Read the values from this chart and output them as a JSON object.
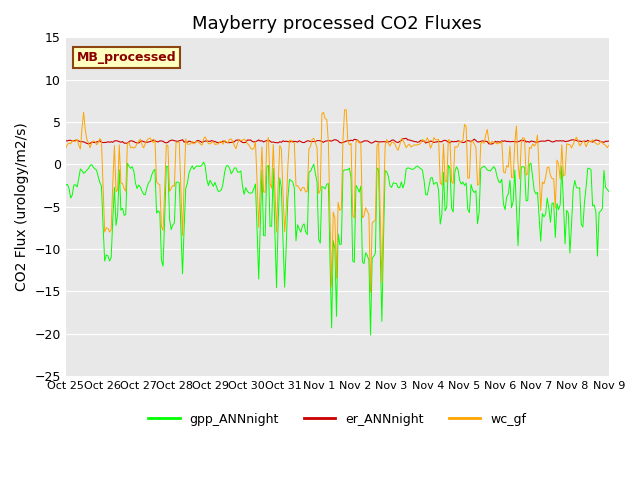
{
  "title": "Mayberry processed CO2 Fluxes",
  "ylabel": "CO2 Flux (urology/m2/s)",
  "ylim": [
    -25,
    15
  ],
  "yticks": [
    -25,
    -20,
    -15,
    -10,
    -5,
    0,
    5,
    10,
    15
  ],
  "xtick_labels": [
    "Oct 25",
    "Oct 26",
    "Oct 27",
    "Oct 28",
    "Oct 29",
    "Oct 30",
    "Oct 31",
    "Nov 1",
    "Nov 2",
    "Nov 3",
    "Nov 4",
    "Nov 5",
    "Nov 6",
    "Nov 7",
    "Nov 8",
    "Nov 9"
  ],
  "legend_label": "MB_processed",
  "series_labels": [
    "gpp_ANNnight",
    "er_ANNnight",
    "wc_gf"
  ],
  "colors": {
    "gpp_ANNnight": "#00FF00",
    "er_ANNnight": "#CC0000",
    "wc_gf": "#FFA500"
  },
  "bg_color": "#E8E8E8",
  "title_fontsize": 13,
  "axis_fontsize": 10,
  "tick_fontsize": 9,
  "legend_box_color": "#FFFFC0",
  "legend_box_edge": "#8B4513"
}
